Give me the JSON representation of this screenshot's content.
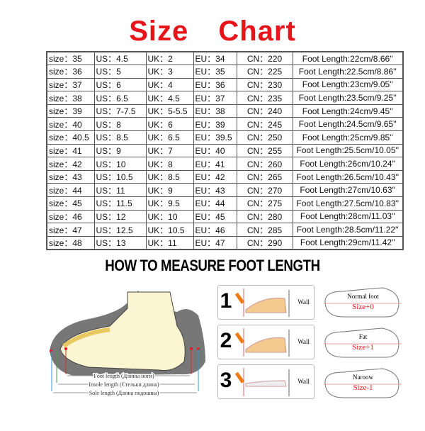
{
  "title": "Size Chart",
  "rows": [
    [
      "size：35",
      "US：4.5",
      "UK：2",
      "EU：34",
      "CN：220",
      "Foot Length:22cm/8.66''"
    ],
    [
      "size：36",
      "US：5",
      "UK：3",
      "EU：35",
      "CN：225",
      "Foot Length:22.5cm/8.86''"
    ],
    [
      "size：37",
      "US：6",
      "UK：4",
      "EU：36",
      "CN：230",
      "Foot Length:23cm/9.05''"
    ],
    [
      "size：38",
      "US：6.5",
      "UK：4.5",
      "EU：37",
      "CN：235",
      "Foot Length:23.5cm/9.25''"
    ],
    [
      "size：39",
      "US：7-7.5",
      "UK：5-5.5",
      "EU：38",
      "CN：240",
      "Foot Length:24cm/9.45''"
    ],
    [
      "size：40",
      "US：8",
      "UK：6",
      "EU：39",
      "CN：245",
      "Foot Length:24.5cm/9.65''"
    ],
    [
      "size：40.5",
      "US：8.5",
      "UK：6.5",
      "EU：39.5",
      "CN：250",
      "Foot Length:25cm/9.85''"
    ],
    [
      "size：41",
      "US：9",
      "UK：7",
      "EU：40",
      "CN：255",
      "Foot Length:25.5cm/10.05''"
    ],
    [
      "size：42",
      "US：10",
      "UK：8",
      "EU：41",
      "CN：260",
      "Foot Length:26cm/10.24''"
    ],
    [
      "size：43",
      "US：10.5",
      "UK：8.5",
      "EU：42",
      "CN：265",
      "Foot Length:26.5cm/10.43''"
    ],
    [
      "size：44",
      "US：11",
      "UK：9",
      "EU：43",
      "CN：270",
      "Foot Length:27cm/10.63''"
    ],
    [
      "size：45",
      "US：11.5",
      "UK：9.5",
      "EU：44",
      "CN：275",
      "Foot Length:27.5cm/10.83''"
    ],
    [
      "size：46",
      "US：12",
      "UK：10",
      "EU：45",
      "CN：280",
      "Foot Length:28cm/11.03''"
    ],
    [
      "size：47",
      "US：12.5",
      "UK：10.5",
      "EU：46",
      "CN：285",
      "Foot Length:28.5cm/11.22''"
    ],
    [
      "size：48",
      "US：13",
      "UK：11",
      "EU：47",
      "CN：290",
      "Foot Length:29cm/11.42''"
    ]
  ],
  "measure_heading": "HOW TO MEASURE FOOT LENGTH",
  "shoe_labels": {
    "foot": "Foot length (Длины ноги)",
    "insole": "Insole length (Стельки длина)",
    "sole": "Sole length (Длина подошвы)"
  },
  "steps": [
    {
      "num": "1",
      "label": "Wall"
    },
    {
      "num": "2",
      "label": "Wall"
    },
    {
      "num": "3",
      "label": "Wall"
    }
  ],
  "feet": [
    {
      "type": "Normal foot",
      "size": "Size+0"
    },
    {
      "type": "Fat",
      "size": "Size+1"
    },
    {
      "type": "Naroow",
      "size": "Size-1"
    }
  ],
  "colors": {
    "title": "#e8141b",
    "size_text": "#e8141b"
  }
}
